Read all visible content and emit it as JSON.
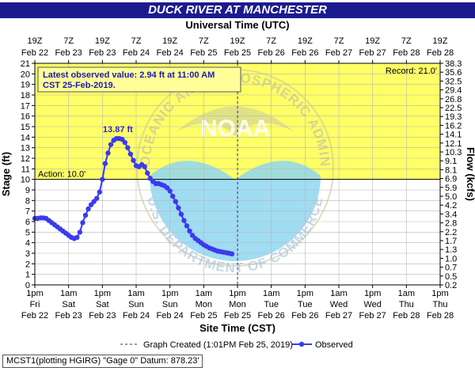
{
  "title": "DUCK RIVER AT MANCHESTER",
  "top_axis_title": "Universal Time (UTC)",
  "bottom_axis_title": "Site Time (CST)",
  "left_axis_title": "Stage (ft)",
  "right_axis_title": "Flow (kcfs)",
  "latest_note_line1": "Latest observed value: 2.94 ft at 11:00 AM",
  "latest_note_line2": "CST 25-Feb-2019.",
  "peak_label": "13.87 ft",
  "record_label": "Record: 21.0'",
  "action_label": "Action: 10.0'",
  "watermark": {
    "text": "NOAA",
    "arc_top": "NATIONAL OCEANIC AND ATMOSPHERIC ADMINISTRATION",
    "arc_bottom": "U.S. DEPARTMENT OF COMMERCE"
  },
  "legend": {
    "created": "Graph Created (1:01PM Feb 25, 2019)",
    "observed": "Observed"
  },
  "footer": "MCST1(plotting HGIRG) \"Gage 0\" Datum: 878.23'",
  "colors": {
    "title_bg": "#1b1b8f",
    "above_action": "#ffff66",
    "below_action": "#ffffff",
    "series": "#3a3af0",
    "peak_label": "#2b2bd0",
    "watermark_blue": "#8fd6f0",
    "watermark_gray": "#c8c8a0"
  },
  "chart_data": {
    "type": "line",
    "y_left": {
      "label": "Stage (ft)",
      "range": [
        0,
        21
      ],
      "ticks": [
        "0",
        "1",
        "2",
        "3",
        "4",
        "5",
        "6",
        "7",
        "8",
        "9",
        "10",
        "11",
        "12",
        "13",
        "14",
        "15",
        "16",
        "17",
        "18",
        "19",
        "20",
        "21"
      ]
    },
    "y_right": {
      "label": "Flow (kcfs)",
      "ticks": [
        "0.2",
        "0.5",
        "0.7",
        "1.0",
        "1.3",
        "1.7",
        "2.2",
        "2.8",
        "3.4",
        "4.2",
        "5.0",
        "5.9",
        "6.9",
        "8.1",
        "9.1",
        "10.3",
        "12.1",
        "14.1",
        "16.2",
        "19.3",
        "22.5",
        "26.8",
        "29.4",
        "32.5",
        "35.6",
        "38.3"
      ]
    },
    "x_local_ticks": [
      {
        "time": "1pm",
        "day": "Fri",
        "date": "Feb 22"
      },
      {
        "time": "1am",
        "day": "Sat",
        "date": "Feb 23"
      },
      {
        "time": "1pm",
        "day": "Sat",
        "date": "Feb 23"
      },
      {
        "time": "1am",
        "day": "Sun",
        "date": "Feb 24"
      },
      {
        "time": "1pm",
        "day": "Sun",
        "date": "Feb 24"
      },
      {
        "time": "1am",
        "day": "Mon",
        "date": "Feb 25"
      },
      {
        "time": "1pm",
        "day": "Mon",
        "date": "Feb 25"
      },
      {
        "time": "1am",
        "day": "Tue",
        "date": "Feb 26"
      },
      {
        "time": "1pm",
        "day": "Tue",
        "date": "Feb 26"
      },
      {
        "time": "1am",
        "day": "Wed",
        "date": "Feb 27"
      },
      {
        "time": "1pm",
        "day": "Wed",
        "date": "Feb 27"
      },
      {
        "time": "1am",
        "day": "Thu",
        "date": "Feb 28"
      },
      {
        "time": "1pm",
        "day": "Thu",
        "date": "Feb 28"
      }
    ],
    "x_utc_ticks": [
      {
        "time": "19Z",
        "date": "Feb 22"
      },
      {
        "time": "7Z",
        "date": "Feb 23"
      },
      {
        "time": "19Z",
        "date": "Feb 23"
      },
      {
        "time": "7Z",
        "date": "Feb 24"
      },
      {
        "time": "19Z",
        "date": "Feb 24"
      },
      {
        "time": "7Z",
        "date": "Feb 25"
      },
      {
        "time": "19Z",
        "date": "Feb 25"
      },
      {
        "time": "7Z",
        "date": "Feb 26"
      },
      {
        "time": "19Z",
        "date": "Feb 26"
      },
      {
        "time": "7Z",
        "date": "Feb 27"
      },
      {
        "time": "19Z",
        "date": "Feb 27"
      },
      {
        "time": "7Z",
        "date": "Feb 28"
      },
      {
        "time": "19Z",
        "date": "Feb 28"
      }
    ],
    "x_range": [
      "2019-02-22 13:00",
      "2019-02-28 13:00"
    ],
    "action_stage": 10.0,
    "record_stage": 21.0,
    "graph_created": "2019-02-25 13:01",
    "series": [
      {
        "name": "Observed",
        "points": [
          [
            "2019-02-22 13:00",
            6.3
          ],
          [
            "2019-02-22 14:00",
            6.3
          ],
          [
            "2019-02-22 15:00",
            6.35
          ],
          [
            "2019-02-22 16:00",
            6.35
          ],
          [
            "2019-02-22 17:00",
            6.3
          ],
          [
            "2019-02-22 18:00",
            6.1
          ],
          [
            "2019-02-22 19:00",
            5.9
          ],
          [
            "2019-02-22 20:00",
            5.7
          ],
          [
            "2019-02-22 21:00",
            5.5
          ],
          [
            "2019-02-22 22:00",
            5.3
          ],
          [
            "2019-02-22 23:00",
            5.1
          ],
          [
            "2019-02-23 00:00",
            4.9
          ],
          [
            "2019-02-23 01:00",
            4.7
          ],
          [
            "2019-02-23 02:00",
            4.5
          ],
          [
            "2019-02-23 03:00",
            4.4
          ],
          [
            "2019-02-23 04:00",
            4.5
          ],
          [
            "2019-02-23 05:00",
            5.0
          ],
          [
            "2019-02-23 06:00",
            5.9
          ],
          [
            "2019-02-23 07:00",
            6.6
          ],
          [
            "2019-02-23 08:00",
            7.2
          ],
          [
            "2019-02-23 09:00",
            7.6
          ],
          [
            "2019-02-23 10:00",
            7.9
          ],
          [
            "2019-02-23 11:00",
            8.2
          ],
          [
            "2019-02-23 12:00",
            8.8
          ],
          [
            "2019-02-23 13:00",
            10.0
          ],
          [
            "2019-02-23 14:00",
            11.5
          ],
          [
            "2019-02-23 15:00",
            12.5
          ],
          [
            "2019-02-23 16:00",
            13.3
          ],
          [
            "2019-02-23 17:00",
            13.7
          ],
          [
            "2019-02-23 18:00",
            13.87
          ],
          [
            "2019-02-23 19:00",
            13.87
          ],
          [
            "2019-02-23 20:00",
            13.8
          ],
          [
            "2019-02-23 21:00",
            13.5
          ],
          [
            "2019-02-23 22:00",
            13.0
          ],
          [
            "2019-02-23 23:00",
            12.4
          ],
          [
            "2019-02-24 00:00",
            11.8
          ],
          [
            "2019-02-24 01:00",
            11.3
          ],
          [
            "2019-02-24 02:00",
            11.2
          ],
          [
            "2019-02-24 03:00",
            11.4
          ],
          [
            "2019-02-24 04:00",
            11.2
          ],
          [
            "2019-02-24 05:00",
            10.6
          ],
          [
            "2019-02-24 06:00",
            10.1
          ],
          [
            "2019-02-24 07:00",
            9.8
          ],
          [
            "2019-02-24 08:00",
            9.6
          ],
          [
            "2019-02-24 09:00",
            9.6
          ],
          [
            "2019-02-24 10:00",
            9.5
          ],
          [
            "2019-02-24 11:00",
            9.4
          ],
          [
            "2019-02-24 12:00",
            9.2
          ],
          [
            "2019-02-24 13:00",
            8.9
          ],
          [
            "2019-02-24 14:00",
            8.4
          ],
          [
            "2019-02-24 15:00",
            7.9
          ],
          [
            "2019-02-24 16:00",
            7.3
          ],
          [
            "2019-02-24 17:00",
            6.7
          ],
          [
            "2019-02-24 18:00",
            6.1
          ],
          [
            "2019-02-24 19:00",
            5.6
          ],
          [
            "2019-02-24 20:00",
            5.1
          ],
          [
            "2019-02-24 21:00",
            4.7
          ],
          [
            "2019-02-24 22:00",
            4.4
          ],
          [
            "2019-02-24 23:00",
            4.2
          ],
          [
            "2019-02-25 00:00",
            4.0
          ],
          [
            "2019-02-25 01:00",
            3.8
          ],
          [
            "2019-02-25 02:00",
            3.65
          ],
          [
            "2019-02-25 03:00",
            3.5
          ],
          [
            "2019-02-25 04:00",
            3.4
          ],
          [
            "2019-02-25 05:00",
            3.3
          ],
          [
            "2019-02-25 06:00",
            3.2
          ],
          [
            "2019-02-25 07:00",
            3.15
          ],
          [
            "2019-02-25 08:00",
            3.1
          ],
          [
            "2019-02-25 09:00",
            3.05
          ],
          [
            "2019-02-25 10:00",
            3.0
          ],
          [
            "2019-02-25 11:00",
            2.94
          ]
        ]
      }
    ]
  }
}
